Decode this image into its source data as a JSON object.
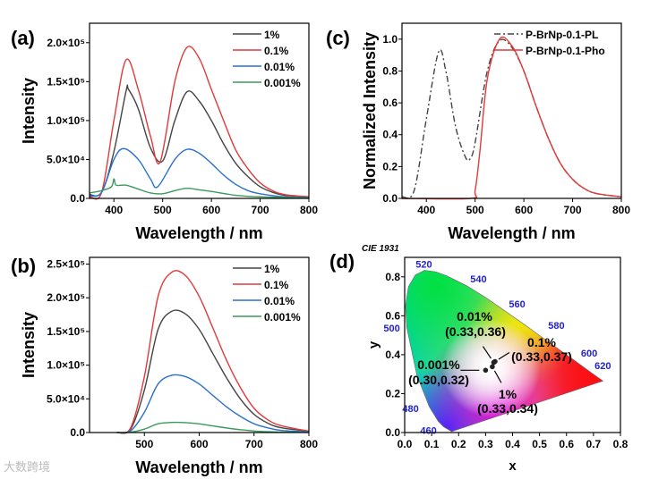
{
  "watermark": "大数跨境",
  "chart_data": [
    {
      "panel": "(a)",
      "type": "line",
      "xlabel": "Wavelength / nm",
      "ylabel": "Intensity",
      "xlim": [
        350,
        800
      ],
      "ylim": [
        0,
        225000
      ],
      "xticks": [
        400,
        500,
        600,
        700,
        800
      ],
      "yticks": [
        0,
        50000,
        100000,
        150000,
        200000
      ],
      "ytick_labels": [
        "0.0",
        "5.0×10⁴",
        "1.0×10⁵",
        "1.5×10⁵",
        "2.0×10⁵"
      ],
      "legend": "top-right",
      "series": [
        {
          "name": "1%",
          "color": "#444444",
          "x": [
            350,
            375,
            400,
            425,
            430,
            450,
            475,
            500,
            525,
            550,
            575,
            600,
            625,
            650,
            675,
            700,
            725,
            750,
            800
          ],
          "y": [
            5000,
            8000,
            60000,
            138000,
            140000,
            115000,
            65000,
            48000,
            100000,
            137000,
            125000,
            100000,
            70000,
            45000,
            28000,
            15000,
            8000,
            4000,
            2000
          ]
        },
        {
          "name": "0.1%",
          "color": "#e03a3a",
          "x": [
            350,
            375,
            400,
            425,
            450,
            475,
            495,
            525,
            550,
            575,
            600,
            625,
            650,
            675,
            700,
            725,
            750,
            800
          ],
          "y": [
            2000,
            8000,
            100000,
            178000,
            140000,
            80000,
            47000,
            150000,
            194000,
            180000,
            140000,
            100000,
            62000,
            38000,
            20000,
            10000,
            5000,
            2000
          ]
        },
        {
          "name": "0.01%",
          "color": "#2a6fd0",
          "x": [
            350,
            375,
            400,
            420,
            450,
            475,
            490,
            525,
            550,
            575,
            600,
            625,
            650,
            675,
            700,
            750,
            800
          ],
          "y": [
            3000,
            8000,
            50000,
            64000,
            50000,
            25000,
            15000,
            50000,
            63000,
            58000,
            45000,
            30000,
            18000,
            10000,
            6000,
            2000,
            1000
          ]
        },
        {
          "name": "0.001%",
          "color": "#3a9a5a",
          "x": [
            350,
            375,
            395,
            400,
            405,
            425,
            450,
            475,
            500,
            525,
            550,
            575,
            600,
            650,
            700,
            800
          ],
          "y": [
            7000,
            10000,
            15000,
            25000,
            17000,
            17000,
            12000,
            7000,
            6000,
            10000,
            13000,
            11000,
            9000,
            4000,
            2000,
            500
          ]
        }
      ]
    },
    {
      "panel": "(b)",
      "type": "line",
      "xlabel": "Wavelength / nm",
      "ylabel": "Intensity",
      "xlim": [
        400,
        800
      ],
      "ylim": [
        0,
        260000
      ],
      "xticks": [
        500,
        600,
        700,
        800
      ],
      "yticks": [
        0,
        50000,
        100000,
        150000,
        200000,
        250000
      ],
      "ytick_labels": [
        "0.0",
        "5.0×10⁴",
        "1.0×10⁵",
        "1.5×10⁵",
        "2.0×10⁵",
        "2.5×10⁵"
      ],
      "legend": "top-right",
      "series": [
        {
          "name": "1%",
          "color": "#444444",
          "x": [
            450,
            475,
            500,
            525,
            550,
            575,
            600,
            625,
            650,
            675,
            700,
            725,
            750,
            800
          ],
          "y": [
            0,
            5000,
            63000,
            153000,
            180000,
            176000,
            153000,
            117000,
            81000,
            50000,
            27000,
            14000,
            7000,
            2000
          ]
        },
        {
          "name": "0.1%",
          "color": "#e03a3a",
          "x": [
            450,
            475,
            500,
            525,
            550,
            575,
            600,
            625,
            650,
            675,
            700,
            725,
            750,
            800
          ],
          "y": [
            0,
            7000,
            83000,
            202000,
            238000,
            233000,
            202000,
            155000,
            107000,
            67000,
            36000,
            19000,
            10000,
            2000
          ]
        },
        {
          "name": "0.01%",
          "color": "#2a6fd0",
          "x": [
            450,
            475,
            500,
            525,
            550,
            575,
            600,
            625,
            650,
            675,
            700,
            725,
            750,
            800
          ],
          "y": [
            0,
            2500,
            30000,
            72000,
            85000,
            83000,
            72000,
            55000,
            38000,
            24000,
            13000,
            7000,
            3000,
            1000
          ]
        },
        {
          "name": "0.001%",
          "color": "#3a9a5a",
          "x": [
            450,
            475,
            500,
            525,
            550,
            575,
            600,
            625,
            650,
            675,
            700,
            725,
            750,
            800
          ],
          "y": [
            0,
            500,
            5000,
            13000,
            15000,
            14700,
            12800,
            9800,
            6800,
            4200,
            2300,
            1200,
            600,
            200
          ]
        }
      ]
    },
    {
      "panel": "(c)",
      "type": "line",
      "xlabel": "Wavelength / nm",
      "ylabel": "Normalized Intensity",
      "xlim": [
        350,
        800
      ],
      "ylim": [
        0,
        1.1
      ],
      "xticks": [
        400,
        500,
        600,
        700,
        800
      ],
      "yticks": [
        0,
        0.2,
        0.4,
        0.6,
        0.8,
        1.0
      ],
      "ytick_labels": [
        "0.0",
        "0.2",
        "0.4",
        "0.6",
        "0.8",
        "1.0"
      ],
      "legend": "top-right",
      "series": [
        {
          "name": "P-BrNp-0.1-PL",
          "color": "#444444",
          "dash": "dashdot",
          "x": [
            350,
            375,
            400,
            425,
            440,
            460,
            480,
            490,
            500,
            525,
            550,
            575,
            600,
            625,
            650,
            675,
            700,
            725,
            750,
            800
          ],
          "y": [
            0.01,
            0.05,
            0.5,
            0.92,
            0.8,
            0.45,
            0.26,
            0.25,
            0.35,
            0.8,
            0.99,
            0.95,
            0.8,
            0.58,
            0.38,
            0.22,
            0.12,
            0.06,
            0.03,
            0.01
          ]
        },
        {
          "name": "P-BrNp-0.1-Pho",
          "color": "#e03a3a",
          "x": [
            350,
            490,
            500,
            510,
            525,
            550,
            575,
            600,
            625,
            650,
            675,
            700,
            725,
            750,
            800
          ],
          "y": [
            0,
            0,
            0.05,
            0.3,
            0.75,
            1.0,
            0.96,
            0.8,
            0.58,
            0.38,
            0.22,
            0.12,
            0.06,
            0.03,
            0.01
          ]
        }
      ]
    },
    {
      "panel": "(d)",
      "type": "scatter",
      "title": "CIE 1931",
      "xlabel": "x",
      "ylabel": "y",
      "xlim": [
        0,
        0.8
      ],
      "ylim": [
        0,
        0.9
      ],
      "xticks": [
        0,
        0.1,
        0.2,
        0.3,
        0.4,
        0.5,
        0.6,
        0.7,
        0.8
      ],
      "yticks": [
        0,
        0.2,
        0.4,
        0.6,
        0.8
      ],
      "xtick_labels": [
        "0.0",
        "0.1",
        "0.2",
        "0.3",
        "0.4",
        "0.5",
        "0.6",
        "0.7",
        "0.8"
      ],
      "ytick_labels": [
        "0.0",
        "0.2",
        "0.4",
        "0.6",
        "0.8"
      ],
      "wavelength_labels": [
        {
          "label": "520",
          "x": 0.074,
          "y": 0.834
        },
        {
          "label": "540",
          "x": 0.23,
          "y": 0.754
        },
        {
          "label": "560",
          "x": 0.373,
          "y": 0.624
        },
        {
          "label": "580",
          "x": 0.512,
          "y": 0.487
        },
        {
          "label": "600",
          "x": 0.627,
          "y": 0.373
        },
        {
          "label": "620",
          "x": 0.691,
          "y": 0.308
        },
        {
          "label": "500",
          "x": 0.008,
          "y": 0.538
        },
        {
          "label": "480",
          "x": 0.091,
          "y": 0.133
        },
        {
          "label": "460",
          "x": 0.144,
          "y": 0.03
        }
      ],
      "points": [
        {
          "name": "0.01%",
          "coord": "(0.33,0.36)",
          "x": 0.33,
          "y": 0.36
        },
        {
          "name": "0.1%",
          "coord": "(0.33,0.37)",
          "x": 0.335,
          "y": 0.365
        },
        {
          "name": "0.001%",
          "coord": "(0.30,0.32)",
          "x": 0.3,
          "y": 0.32
        },
        {
          "name": "1%",
          "coord": "(0.33,0.34)",
          "x": 0.325,
          "y": 0.338
        }
      ]
    }
  ]
}
